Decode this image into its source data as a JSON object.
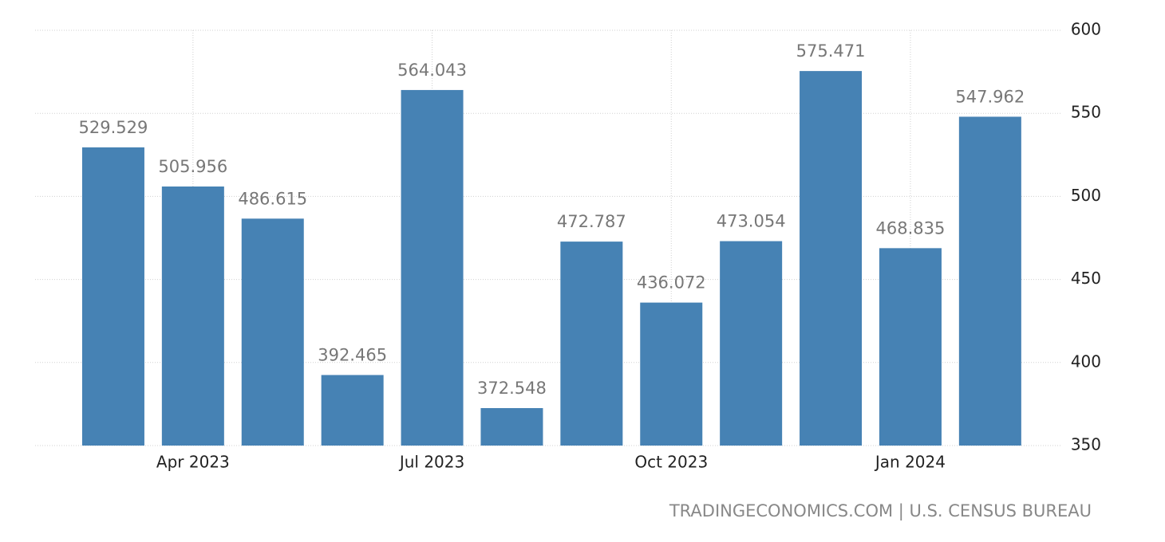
{
  "chart_data": {
    "type": "bar",
    "categories": [
      null,
      "Apr 2023",
      null,
      null,
      "Jul 2023",
      null,
      null,
      "Oct 2023",
      null,
      null,
      "Jan 2024",
      null
    ],
    "values": [
      529.529,
      505.956,
      486.615,
      392.465,
      564.043,
      372.548,
      472.787,
      436.072,
      473.054,
      575.471,
      468.835,
      547.962
    ],
    "color": "#4682b4",
    "ylim": [
      350,
      600
    ],
    "yticks": [
      350,
      400,
      450,
      500,
      550,
      600
    ],
    "grid": true,
    "source": "TRADINGECONOMICS.COM | U.S. CENSUS BUREAU"
  }
}
